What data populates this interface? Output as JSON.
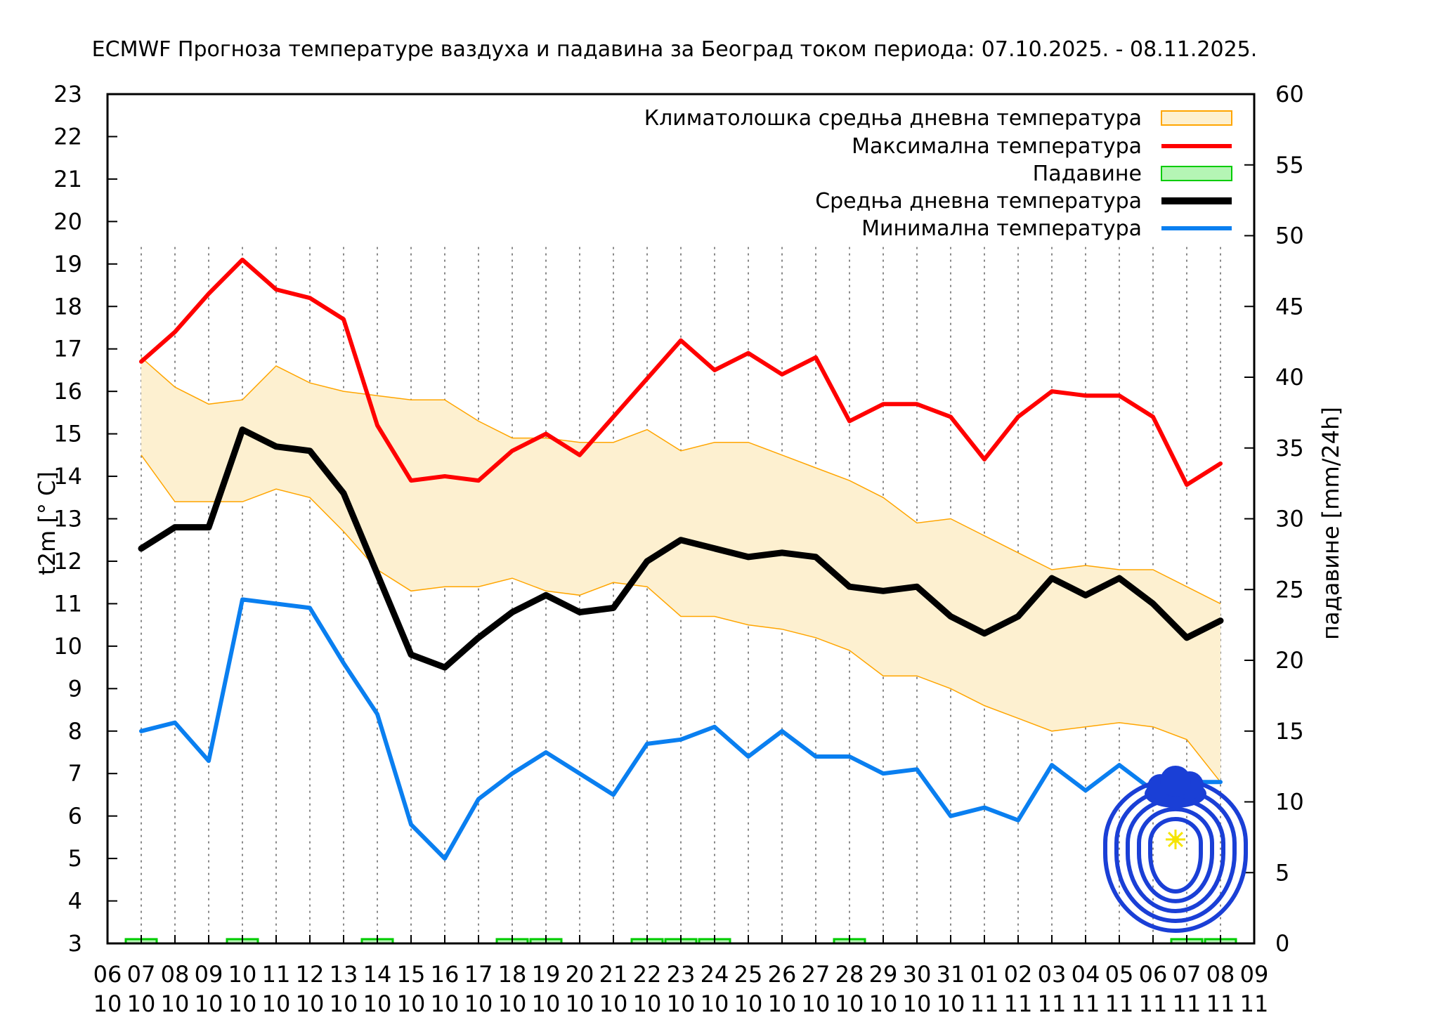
{
  "chart_data": {
    "type": "line",
    "title": "ECMWF Прогноза температуре ваздуха и падавина за Београд током периода: 07.10.2025. - 08.11.2025.",
    "ylabel": "t2m [° C]",
    "y2label": "падавине [mm/24h]",
    "ylim": [
      3,
      23
    ],
    "y2lim": [
      0,
      60
    ],
    "y_ticks": [
      "3",
      "4",
      "5",
      "6",
      "7",
      "8",
      "9",
      "10",
      "11",
      "12",
      "13",
      "14",
      "15",
      "16",
      "17",
      "18",
      "19",
      "20",
      "21",
      "22",
      "23"
    ],
    "y2_ticks": [
      "0",
      "5",
      "10",
      "15",
      "20",
      "25",
      "30",
      "35",
      "40",
      "45",
      "50",
      "55",
      "60"
    ],
    "x_tick_days": [
      "06",
      "07",
      "08",
      "09",
      "10",
      "11",
      "12",
      "13",
      "14",
      "15",
      "16",
      "17",
      "18",
      "19",
      "20",
      "21",
      "22",
      "23",
      "24",
      "25",
      "26",
      "27",
      "28",
      "29",
      "30",
      "31",
      "01",
      "02",
      "03",
      "04",
      "05",
      "06",
      "07",
      "08",
      "09"
    ],
    "x_tick_months": [
      "10",
      "10",
      "10",
      "10",
      "10",
      "10",
      "10",
      "10",
      "10",
      "10",
      "10",
      "10",
      "10",
      "10",
      "10",
      "10",
      "10",
      "10",
      "10",
      "10",
      "10",
      "10",
      "10",
      "10",
      "10",
      "10",
      "11",
      "11",
      "11",
      "11",
      "11",
      "11",
      "11",
      "11",
      "11"
    ],
    "legend_position": "top-right",
    "legend": [
      {
        "label": "Климатолошка средња дневна температура",
        "color": "#ffa500",
        "fill": "#fdf0d0",
        "kind": "band"
      },
      {
        "label": "Максимална температура",
        "color": "#ff0000",
        "kind": "line"
      },
      {
        "label": "Падавине",
        "color": "#00cc00",
        "fill": "#b5f5b5",
        "kind": "bar"
      },
      {
        "label": "Средња дневна температура",
        "color": "#000000",
        "kind": "line"
      },
      {
        "label": "Минимална температура",
        "color": "#0a7ff0",
        "kind": "line"
      }
    ],
    "series": [
      {
        "name": "Максимална температура",
        "color": "#ff0000",
        "values": [
          16.7,
          17.4,
          18.3,
          19.1,
          18.4,
          18.2,
          17.7,
          15.2,
          13.9,
          14.0,
          13.9,
          14.6,
          15.0,
          14.5,
          15.4,
          16.3,
          17.2,
          16.5,
          16.9,
          16.4,
          16.8,
          15.3,
          15.7,
          15.7,
          15.4,
          14.4,
          15.4,
          16.0,
          15.9,
          15.9,
          15.4,
          13.8,
          14.3
        ]
      },
      {
        "name": "Средња дневна температура",
        "color": "#000000",
        "values": [
          12.3,
          12.8,
          12.8,
          15.1,
          14.7,
          14.6,
          13.6,
          11.7,
          9.8,
          9.5,
          10.2,
          10.8,
          11.2,
          10.8,
          10.9,
          12.0,
          12.5,
          12.3,
          12.1,
          12.2,
          12.1,
          11.4,
          11.3,
          11.4,
          10.7,
          10.3,
          10.7,
          11.6,
          11.2,
          11.6,
          11.0,
          10.2,
          10.6
        ]
      },
      {
        "name": "Минимална температура",
        "color": "#0a7ff0",
        "values": [
          8.0,
          8.2,
          7.3,
          11.1,
          11.0,
          10.9,
          9.6,
          8.4,
          5.8,
          5.0,
          6.4,
          7.0,
          7.5,
          7.0,
          6.5,
          7.7,
          7.8,
          8.1,
          7.4,
          8.0,
          7.4,
          7.4,
          7.0,
          7.1,
          6.0,
          6.2,
          5.9,
          7.2,
          6.6,
          7.2,
          6.6,
          6.8,
          6.8
        ]
      }
    ],
    "climatology_band": {
      "name": "Климатолошка средња дневна температура",
      "upper": [
        16.8,
        16.1,
        15.7,
        15.8,
        16.6,
        16.2,
        16.0,
        15.9,
        15.8,
        15.8,
        15.3,
        14.9,
        14.9,
        14.8,
        14.8,
        15.1,
        14.6,
        14.8,
        14.8,
        14.5,
        14.2,
        13.9,
        13.5,
        12.9,
        13.0,
        12.6,
        12.2,
        11.8,
        11.9,
        11.8,
        11.8,
        11.4,
        11.0
      ],
      "lower": [
        14.5,
        13.4,
        13.4,
        13.4,
        13.7,
        13.5,
        12.7,
        11.8,
        11.3,
        11.4,
        11.4,
        11.6,
        11.3,
        11.2,
        11.5,
        11.4,
        10.7,
        10.7,
        10.5,
        10.4,
        10.2,
        9.9,
        9.3,
        9.3,
        9.0,
        8.6,
        8.3,
        8.0,
        8.1,
        8.2,
        8.1,
        7.8,
        6.8
      ]
    },
    "precipitation_mm": [
      0.3,
      0,
      0,
      0.3,
      0,
      0,
      0,
      0.3,
      0,
      0,
      0,
      0.3,
      0.3,
      0,
      0,
      0.3,
      0.3,
      0.3,
      0,
      0,
      0,
      0.3,
      0,
      0,
      0,
      0,
      0,
      0,
      0,
      0,
      0,
      0.3,
      0.3
    ]
  }
}
